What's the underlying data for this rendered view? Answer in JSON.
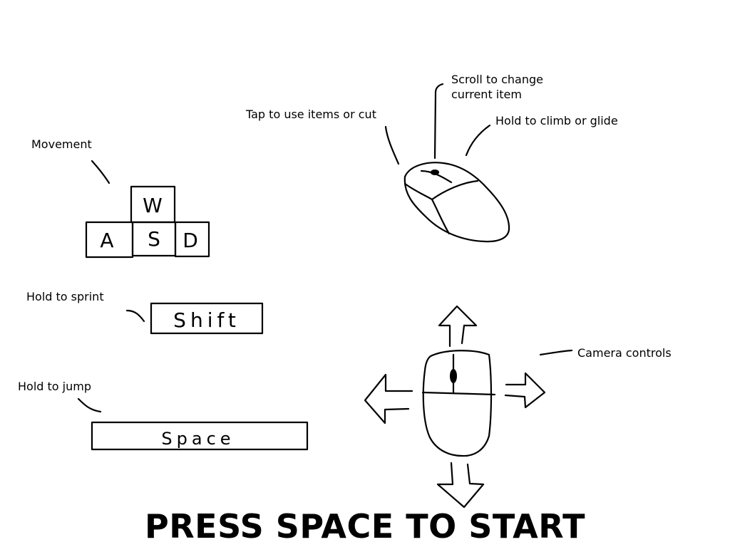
{
  "labels": {
    "movement": "Movement",
    "sprint": "Hold to sprint",
    "jump": "Hold to jump",
    "use": "Tap to use items or cut",
    "scroll_line1": "Scroll to change",
    "scroll_line2": "current item",
    "climb": "Hold to climb or glide",
    "camera": "Camera controls"
  },
  "keys": {
    "w": "W",
    "a": "A",
    "s": "S",
    "d": "D",
    "shift": "Shift",
    "space": "Space"
  },
  "prompt": "PRESS SPACE TO START"
}
